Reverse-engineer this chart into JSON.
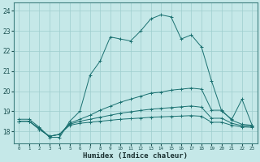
{
  "xlabel": "Humidex (Indice chaleur)",
  "bg_color": "#c5e8e8",
  "grid_color": "#9ecece",
  "line_color": "#1a7070",
  "x_ticks": [
    0,
    1,
    2,
    3,
    4,
    5,
    6,
    7,
    8,
    9,
    10,
    11,
    12,
    13,
    14,
    15,
    16,
    17,
    18,
    19,
    20,
    21,
    22,
    23
  ],
  "ylim": [
    17.4,
    24.4
  ],
  "yticks": [
    18,
    19,
    20,
    21,
    22,
    23,
    24
  ],
  "series": [
    {
      "x": [
        0,
        1,
        2,
        3,
        4,
        5,
        6,
        7,
        8,
        9,
        10,
        11,
        12,
        13,
        14,
        15,
        16,
        17,
        18,
        19,
        20,
        21,
        22,
        23
      ],
      "y": [
        18.6,
        18.6,
        18.2,
        17.7,
        17.7,
        18.5,
        19.0,
        20.8,
        21.5,
        22.7,
        22.6,
        22.5,
        23.0,
        23.6,
        23.8,
        23.7,
        22.6,
        22.8,
        22.2,
        20.5,
        19.0,
        18.6,
        19.6,
        18.3
      ]
    },
    {
      "x": [
        0,
        1,
        2,
        3,
        4,
        5,
        6,
        7,
        8,
        9,
        10,
        11,
        12,
        13,
        14,
        15,
        16,
        17,
        18,
        19,
        20,
        21,
        22,
        23
      ],
      "y": [
        18.5,
        18.5,
        18.15,
        17.75,
        17.85,
        18.4,
        18.6,
        18.8,
        19.05,
        19.25,
        19.45,
        19.6,
        19.75,
        19.9,
        19.95,
        20.05,
        20.1,
        20.15,
        20.1,
        19.05,
        19.05,
        18.55,
        18.35,
        18.3
      ]
    },
    {
      "x": [
        0,
        1,
        2,
        3,
        4,
        5,
        6,
        7,
        8,
        9,
        10,
        11,
        12,
        13,
        14,
        15,
        16,
        17,
        18,
        19,
        20,
        21,
        22,
        23
      ],
      "y": [
        18.5,
        18.5,
        18.1,
        17.75,
        17.85,
        18.35,
        18.5,
        18.6,
        18.7,
        18.8,
        18.9,
        18.97,
        19.04,
        19.1,
        19.14,
        19.18,
        19.22,
        19.26,
        19.2,
        18.65,
        18.65,
        18.4,
        18.28,
        18.25
      ]
    },
    {
      "x": [
        0,
        1,
        2,
        3,
        4,
        5,
        6,
        7,
        8,
        9,
        10,
        11,
        12,
        13,
        14,
        15,
        16,
        17,
        18,
        19,
        20,
        21,
        22,
        23
      ],
      "y": [
        18.5,
        18.5,
        18.1,
        17.75,
        17.85,
        18.3,
        18.4,
        18.45,
        18.5,
        18.55,
        18.6,
        18.63,
        18.66,
        18.7,
        18.72,
        18.74,
        18.76,
        18.78,
        18.75,
        18.45,
        18.45,
        18.3,
        18.22,
        18.2
      ]
    }
  ]
}
